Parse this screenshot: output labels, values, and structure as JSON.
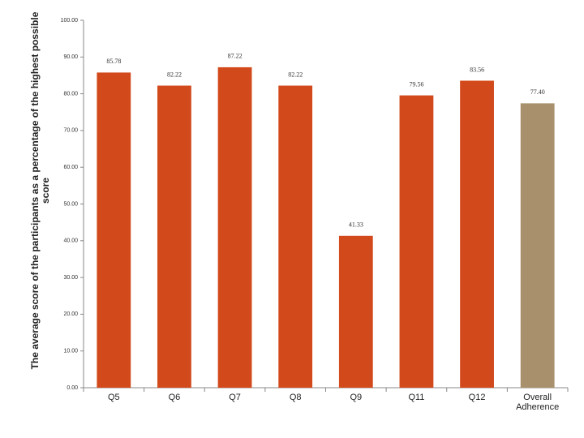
{
  "chart_data": {
    "type": "bar",
    "y_label": "The average score of the participants as a percentage of the highest possible score",
    "categories": [
      "Q5",
      "Q6",
      "Q7",
      "Q8",
      "Q9",
      "Q11",
      "Q12",
      "Overall Adherence"
    ],
    "values": [
      85.78,
      82.22,
      87.22,
      82.22,
      41.33,
      79.56,
      83.56,
      77.4
    ],
    "value_labels": [
      "85.78",
      "82.22",
      "87.22",
      "82.22",
      "41.33",
      "79.56",
      "83.56",
      "77.40"
    ],
    "colors": [
      "#d24a1c",
      "#d24a1c",
      "#d24a1c",
      "#d24a1c",
      "#d24a1c",
      "#d24a1c",
      "#d24a1c",
      "#a8906c"
    ],
    "ylim": [
      0,
      100
    ],
    "yticks": [
      {
        "value": 0,
        "label": "0.00"
      },
      {
        "value": 10,
        "label": "10.00"
      },
      {
        "value": 20,
        "label": "20.00"
      },
      {
        "value": 30,
        "label": "30.00"
      },
      {
        "value": 40,
        "label": "40.00"
      },
      {
        "value": 50,
        "label": "50.00"
      },
      {
        "value": 60,
        "label": "60.00"
      },
      {
        "value": 70,
        "label": "70.00"
      },
      {
        "value": 80,
        "label": "80.00"
      },
      {
        "value": 90,
        "label": "90.00"
      },
      {
        "value": 100,
        "label": "100.00"
      }
    ]
  }
}
